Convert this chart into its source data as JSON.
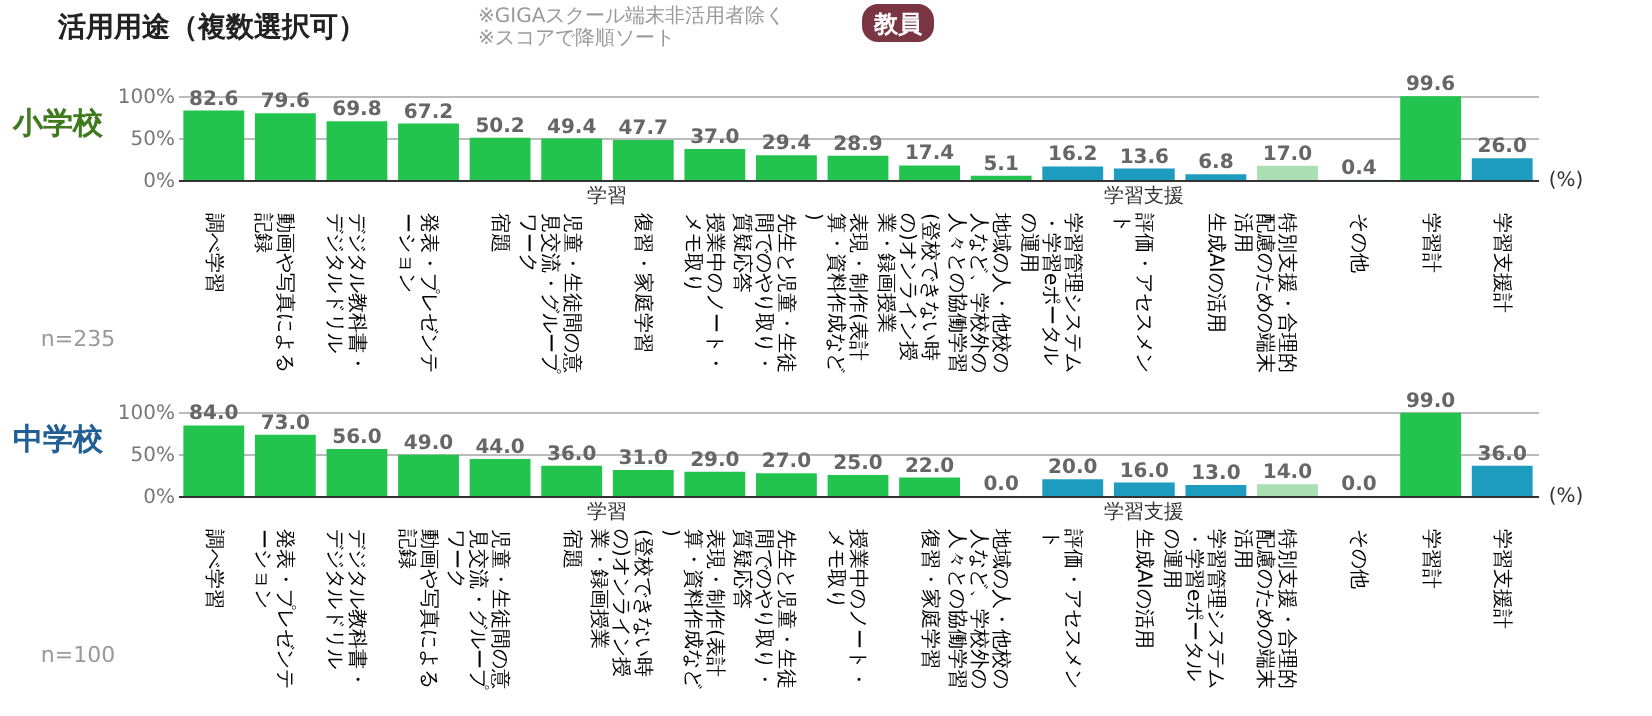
{
  "chart_data": [
    {
      "type": "bar",
      "title": "活用用途（複数選択可）",
      "subtitle": [
        "※GIGAスクール端末非活用者除く",
        "※スコアで降順ソート"
      ],
      "ylabel": "小学校",
      "categories": [
        "調べ学習",
        "動画や写真による記録",
        "デジタル教科書・デジタルドリル",
        "発表・プレゼンテーション",
        "宿題",
        "児童・生徒間の意見交流・グループワーク",
        "復習・家庭学習",
        "授業中のノート・メモ取り",
        "先生と児童・生徒間でのやり取り・質疑応答",
        "表現・制作(表計算・資料作成など)",
        "(登校できない時の)オンライン授業・録画授業",
        "地域の人・他校の人など、学校外の人々との協働学習",
        "学習管理システム・学習eポータルの運用",
        "評価・アセスメント",
        "生成AIの活用",
        "特別支援・合理的配慮のための端末活用",
        "その他",
        "学習計",
        "学習支援計"
      ],
      "values": [
        82.6,
        79.6,
        69.8,
        67.2,
        50.2,
        49.4,
        47.7,
        37.0,
        29.4,
        28.9,
        17.4,
        5.1,
        16.2,
        13.6,
        6.8,
        17.0,
        0.4,
        99.6,
        26.0
      ],
      "colors": [
        "#22c44e",
        "#22c44e",
        "#22c44e",
        "#22c44e",
        "#22c44e",
        "#22c44e",
        "#22c44e",
        "#22c44e",
        "#22c44e",
        "#22c44e",
        "#22c44e",
        "#22c44e",
        "#1d9cc0",
        "#1d9cc0",
        "#1d9cc0",
        "#a9dfb3",
        "#a9dfb3",
        "#22c44e",
        "#1d9cc0"
      ],
      "value_labels": [
        "82.6",
        "79.6",
        "69.8",
        "67.2",
        "50.2",
        "49.4",
        "47.7",
        "37.0",
        "29.4",
        "28.9",
        "17.4",
        "5.1",
        "16.2",
        "13.6",
        "6.8",
        "17.0",
        "0.4",
        "99.6",
        "26.0"
      ],
      "ylim": [
        0,
        100
      ],
      "yticks": [
        {
          "value": 0,
          "label": "0%"
        },
        {
          "value": 50,
          "label": "50%"
        },
        {
          "value": 100,
          "label": "100%"
        }
      ],
      "grid": "y",
      "annotations": [
        "教員",
        "n=235",
        "学習",
        "学習支援",
        "(%)"
      ]
    },
    {
      "type": "bar",
      "ylabel": "中学校",
      "categories": [
        "調べ学習",
        "発表・プレゼンテーション",
        "デジタル教科書・デジタルドリル",
        "動画や写真による記録",
        "児童・生徒間の意見交流・グループワーク",
        "宿題",
        "(登校できない時の)オンライン授業・録画授業",
        "表現・制作(表計算・資料作成など)",
        "先生と児童・生徒間でのやり取り・質疑応答",
        "授業中のノート・メモ取り",
        "復習・家庭学習",
        "地域の人・他校の人など、学校外の人々との協働学習",
        "評価・アセスメント",
        "生成AIの活用",
        "学習管理システム・学習eポータルの運用",
        "特別支援・合理的配慮のための端末活用",
        "その他",
        "学習計",
        "学習支援計"
      ],
      "values": [
        84.0,
        73.0,
        56.0,
        49.0,
        44.0,
        36.0,
        31.0,
        29.0,
        27.0,
        25.0,
        22.0,
        0.0,
        20.0,
        16.0,
        13.0,
        14.0,
        0.0,
        99.0,
        36.0
      ],
      "colors": [
        "#22c44e",
        "#22c44e",
        "#22c44e",
        "#22c44e",
        "#22c44e",
        "#22c44e",
        "#22c44e",
        "#22c44e",
        "#22c44e",
        "#22c44e",
        "#22c44e",
        "#22c44e",
        "#1d9cc0",
        "#1d9cc0",
        "#1d9cc0",
        "#a9dfb3",
        "#a9dfb3",
        "#22c44e",
        "#1d9cc0"
      ],
      "value_labels": [
        "84.0",
        "73.0",
        "56.0",
        "49.0",
        "44.0",
        "36.0",
        "31.0",
        "29.0",
        "27.0",
        "25.0",
        "22.0",
        "0.0",
        "20.0",
        "16.0",
        "13.0",
        "14.0",
        "0.0",
        "99.0",
        "36.0"
      ],
      "ylim": [
        0,
        100
      ],
      "yticks": [
        {
          "value": 0,
          "label": "0%"
        },
        {
          "value": 50,
          "label": "50%"
        },
        {
          "value": 100,
          "label": "100%"
        }
      ],
      "grid": "y",
      "annotations": [
        "n=100",
        "学習",
        "学習支援",
        "(%)"
      ]
    }
  ]
}
